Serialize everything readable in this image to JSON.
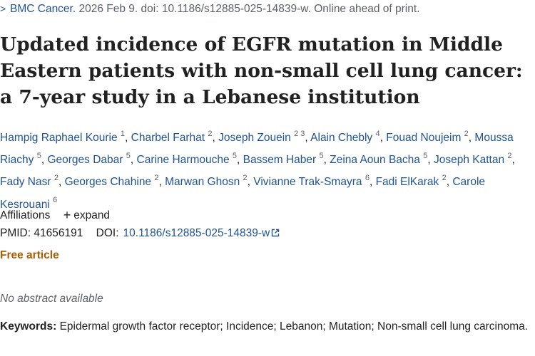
{
  "citation": {
    "journal": "BMC Cancer.",
    "details": "2026 Feb 9. doi: 10.1186/s12885-025-14839-w. Online ahead of print."
  },
  "title": "Updated incidence of EGFR mutation in Middle Eastern patients with non-small cell lung cancer: a 7-year study in a Lebanese institution",
  "authors": [
    {
      "name": "Hampig Raphael Kourie",
      "aff": "1"
    },
    {
      "name": "Charbel Farhat",
      "aff": "2"
    },
    {
      "name": "Joseph Zouein",
      "aff": "2 3"
    },
    {
      "name": "Alain Chebly",
      "aff": "4"
    },
    {
      "name": "Fouad Noujeim",
      "aff": "2"
    },
    {
      "name": "Moussa Riachy",
      "aff": "5"
    },
    {
      "name": "Georges Dabar",
      "aff": "5"
    },
    {
      "name": "Carine Harmouche",
      "aff": "5"
    },
    {
      "name": "Bassem Haber",
      "aff": "5"
    },
    {
      "name": "Zeina Aoun Bacha",
      "aff": "5"
    },
    {
      "name": "Joseph Kattan",
      "aff": "2"
    },
    {
      "name": "Fady Nasr",
      "aff": "2"
    },
    {
      "name": "Georges Chahine",
      "aff": "2"
    },
    {
      "name": "Marwan Ghosn",
      "aff": "2"
    },
    {
      "name": "Vivianne Trak-Smayra",
      "aff": "6"
    },
    {
      "name": "Fadi ElKarak",
      "aff": "2"
    },
    {
      "name": "Carole Kesrouani",
      "aff": "6"
    }
  ],
  "affiliations": {
    "label": "Affiliations",
    "expand_label": "expand"
  },
  "identifiers": {
    "pmid": "PMID: 41656191",
    "doi_label": "DOI:",
    "doi_value": "10.1186/s12885-025-14839-w"
  },
  "free_article_label": "Free article",
  "no_abstract_label": "No abstract available",
  "keywords": {
    "label": "Keywords:",
    "text": "Epidermal growth factor receptor; Incidence; Lebanon; Mutation; Non-small cell lung carcinoma."
  },
  "colors": {
    "link": "#205493",
    "free_article": "#aa5c00",
    "muted": "#5b616b"
  },
  "icons": {
    "journal_chevron": "chevron-right-icon",
    "expand": "plus-icon",
    "doi_external": "external-link-icon"
  }
}
